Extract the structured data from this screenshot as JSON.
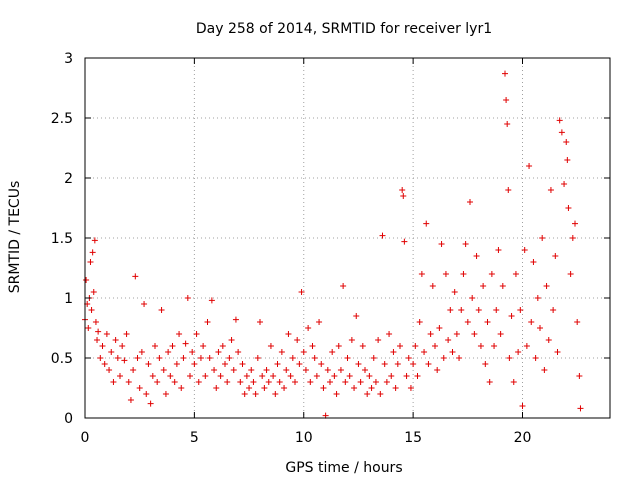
{
  "chart_data": {
    "type": "scatter",
    "title": "Day 258 of 2014, SRMTID for receiver lyr1",
    "xlabel": "GPS time / hours",
    "ylabel": "SRMTID / TECUs",
    "xlim": [
      0,
      24
    ],
    "ylim": [
      0,
      3
    ],
    "xticks": [
      0,
      5,
      10,
      15,
      20
    ],
    "yticks": [
      0,
      0.5,
      1,
      1.5,
      2,
      2.5,
      3
    ],
    "xtick_labels": [
      "0",
      "5",
      "10",
      "15",
      "20"
    ],
    "ytick_labels": [
      "0",
      "0.5",
      "1",
      "1.5",
      "2",
      "2.5",
      "3"
    ],
    "grid": true,
    "marker": "plus",
    "series": [
      {
        "name": "SRMTID",
        "color": "#e00000",
        "points": [
          [
            0.0,
            0.82
          ],
          [
            0.05,
            1.15
          ],
          [
            0.1,
            0.95
          ],
          [
            0.15,
            0.75
          ],
          [
            0.2,
            1.0
          ],
          [
            0.25,
            1.3
          ],
          [
            0.3,
            0.9
          ],
          [
            0.35,
            1.38
          ],
          [
            0.4,
            1.05
          ],
          [
            0.45,
            1.48
          ],
          [
            0.5,
            0.8
          ],
          [
            0.55,
            0.65
          ],
          [
            0.6,
            0.72
          ],
          [
            0.7,
            0.5
          ],
          [
            0.8,
            0.6
          ],
          [
            0.9,
            0.45
          ],
          [
            1.0,
            0.7
          ],
          [
            1.1,
            0.4
          ],
          [
            1.2,
            0.55
          ],
          [
            1.3,
            0.3
          ],
          [
            1.4,
            0.65
          ],
          [
            1.5,
            0.5
          ],
          [
            1.6,
            0.35
          ],
          [
            1.7,
            0.6
          ],
          [
            1.8,
            0.48
          ],
          [
            1.9,
            0.7
          ],
          [
            2.0,
            0.3
          ],
          [
            2.1,
            0.15
          ],
          [
            2.2,
            0.4
          ],
          [
            2.3,
            1.18
          ],
          [
            2.4,
            0.5
          ],
          [
            2.5,
            0.25
          ],
          [
            2.6,
            0.55
          ],
          [
            2.7,
            0.95
          ],
          [
            2.8,
            0.2
          ],
          [
            2.9,
            0.45
          ],
          [
            3.0,
            0.12
          ],
          [
            3.1,
            0.35
          ],
          [
            3.2,
            0.6
          ],
          [
            3.3,
            0.3
          ],
          [
            3.4,
            0.5
          ],
          [
            3.5,
            0.9
          ],
          [
            3.6,
            0.4
          ],
          [
            3.7,
            0.2
          ],
          [
            3.8,
            0.55
          ],
          [
            3.9,
            0.35
          ],
          [
            4.0,
            0.6
          ],
          [
            4.1,
            0.3
          ],
          [
            4.2,
            0.45
          ],
          [
            4.3,
            0.7
          ],
          [
            4.4,
            0.25
          ],
          [
            4.5,
            0.5
          ],
          [
            4.6,
            0.62
          ],
          [
            4.7,
            1.0
          ],
          [
            4.8,
            0.35
          ],
          [
            4.9,
            0.55
          ],
          [
            5.0,
            0.45
          ],
          [
            5.1,
            0.7
          ],
          [
            5.2,
            0.3
          ],
          [
            5.3,
            0.5
          ],
          [
            5.4,
            0.6
          ],
          [
            5.5,
            0.35
          ],
          [
            5.6,
            0.8
          ],
          [
            5.7,
            0.5
          ],
          [
            5.8,
            0.98
          ],
          [
            5.9,
            0.4
          ],
          [
            6.0,
            0.25
          ],
          [
            6.1,
            0.55
          ],
          [
            6.2,
            0.35
          ],
          [
            6.3,
            0.6
          ],
          [
            6.4,
            0.45
          ],
          [
            6.5,
            0.3
          ],
          [
            6.6,
            0.5
          ],
          [
            6.7,
            0.65
          ],
          [
            6.8,
            0.4
          ],
          [
            6.9,
            0.82
          ],
          [
            7.0,
            0.55
          ],
          [
            7.1,
            0.3
          ],
          [
            7.2,
            0.45
          ],
          [
            7.3,
            0.2
          ],
          [
            7.4,
            0.35
          ],
          [
            7.5,
            0.25
          ],
          [
            7.6,
            0.4
          ],
          [
            7.7,
            0.3
          ],
          [
            7.8,
            0.2
          ],
          [
            7.9,
            0.5
          ],
          [
            8.0,
            0.8
          ],
          [
            8.1,
            0.35
          ],
          [
            8.2,
            0.25
          ],
          [
            8.3,
            0.4
          ],
          [
            8.4,
            0.3
          ],
          [
            8.5,
            0.6
          ],
          [
            8.6,
            0.35
          ],
          [
            8.7,
            0.2
          ],
          [
            8.8,
            0.45
          ],
          [
            8.9,
            0.3
          ],
          [
            9.0,
            0.55
          ],
          [
            9.1,
            0.25
          ],
          [
            9.2,
            0.4
          ],
          [
            9.3,
            0.7
          ],
          [
            9.4,
            0.35
          ],
          [
            9.5,
            0.5
          ],
          [
            9.6,
            0.3
          ],
          [
            9.7,
            0.65
          ],
          [
            9.8,
            0.45
          ],
          [
            9.9,
            1.05
          ],
          [
            10.0,
            0.55
          ],
          [
            10.1,
            0.4
          ],
          [
            10.2,
            0.75
          ],
          [
            10.3,
            0.3
          ],
          [
            10.4,
            0.6
          ],
          [
            10.5,
            0.5
          ],
          [
            10.6,
            0.35
          ],
          [
            10.7,
            0.8
          ],
          [
            10.8,
            0.45
          ],
          [
            10.9,
            0.25
          ],
          [
            11.0,
            0.02
          ],
          [
            11.1,
            0.4
          ],
          [
            11.2,
            0.3
          ],
          [
            11.3,
            0.55
          ],
          [
            11.4,
            0.35
          ],
          [
            11.5,
            0.2
          ],
          [
            11.6,
            0.6
          ],
          [
            11.7,
            0.4
          ],
          [
            11.8,
            1.1
          ],
          [
            11.9,
            0.3
          ],
          [
            12.0,
            0.5
          ],
          [
            12.1,
            0.35
          ],
          [
            12.2,
            0.65
          ],
          [
            12.3,
            0.25
          ],
          [
            12.4,
            0.85
          ],
          [
            12.5,
            0.45
          ],
          [
            12.6,
            0.3
          ],
          [
            12.7,
            0.6
          ],
          [
            12.8,
            0.4
          ],
          [
            12.9,
            0.2
          ],
          [
            13.0,
            0.35
          ],
          [
            13.1,
            0.25
          ],
          [
            13.2,
            0.5
          ],
          [
            13.3,
            0.3
          ],
          [
            13.4,
            0.65
          ],
          [
            13.5,
            0.2
          ],
          [
            13.6,
            1.52
          ],
          [
            13.7,
            0.45
          ],
          [
            13.8,
            0.3
          ],
          [
            13.9,
            0.7
          ],
          [
            14.0,
            0.35
          ],
          [
            14.1,
            0.55
          ],
          [
            14.2,
            0.25
          ],
          [
            14.3,
            0.45
          ],
          [
            14.4,
            0.6
          ],
          [
            14.5,
            1.9
          ],
          [
            14.55,
            1.85
          ],
          [
            14.6,
            1.47
          ],
          [
            14.7,
            0.35
          ],
          [
            14.8,
            0.5
          ],
          [
            14.9,
            0.25
          ],
          [
            15.0,
            0.45
          ],
          [
            15.1,
            0.6
          ],
          [
            15.2,
            0.35
          ],
          [
            15.3,
            0.8
          ],
          [
            15.4,
            1.2
          ],
          [
            15.5,
            0.55
          ],
          [
            15.6,
            1.62
          ],
          [
            15.7,
            0.45
          ],
          [
            15.8,
            0.7
          ],
          [
            15.9,
            1.1
          ],
          [
            16.0,
            0.6
          ],
          [
            16.1,
            0.4
          ],
          [
            16.2,
            0.75
          ],
          [
            16.3,
            1.45
          ],
          [
            16.4,
            0.5
          ],
          [
            16.5,
            1.2
          ],
          [
            16.6,
            0.65
          ],
          [
            16.7,
            0.9
          ],
          [
            16.8,
            0.55
          ],
          [
            16.9,
            1.05
          ],
          [
            17.0,
            0.7
          ],
          [
            17.1,
            0.5
          ],
          [
            17.2,
            0.9
          ],
          [
            17.3,
            1.2
          ],
          [
            17.4,
            1.45
          ],
          [
            17.5,
            0.8
          ],
          [
            17.6,
            1.8
          ],
          [
            17.7,
            1.0
          ],
          [
            17.8,
            0.7
          ],
          [
            17.9,
            1.35
          ],
          [
            18.0,
            0.9
          ],
          [
            18.1,
            0.6
          ],
          [
            18.2,
            1.1
          ],
          [
            18.3,
            0.45
          ],
          [
            18.4,
            0.8
          ],
          [
            18.5,
            0.3
          ],
          [
            18.6,
            1.2
          ],
          [
            18.7,
            0.6
          ],
          [
            18.8,
            0.9
          ],
          [
            18.9,
            1.4
          ],
          [
            19.0,
            0.7
          ],
          [
            19.1,
            1.1
          ],
          [
            19.2,
            2.87
          ],
          [
            19.25,
            2.65
          ],
          [
            19.3,
            2.45
          ],
          [
            19.35,
            1.9
          ],
          [
            19.4,
            0.5
          ],
          [
            19.5,
            0.85
          ],
          [
            19.6,
            0.3
          ],
          [
            19.7,
            1.2
          ],
          [
            19.8,
            0.55
          ],
          [
            19.9,
            0.9
          ],
          [
            20.0,
            0.1
          ],
          [
            20.1,
            1.4
          ],
          [
            20.2,
            0.6
          ],
          [
            20.3,
            2.1
          ],
          [
            20.4,
            0.8
          ],
          [
            20.5,
            1.3
          ],
          [
            20.6,
            0.5
          ],
          [
            20.7,
            1.0
          ],
          [
            20.8,
            0.75
          ],
          [
            20.9,
            1.5
          ],
          [
            21.0,
            0.4
          ],
          [
            21.1,
            1.1
          ],
          [
            21.2,
            0.65
          ],
          [
            21.3,
            1.9
          ],
          [
            21.4,
            0.9
          ],
          [
            21.5,
            1.35
          ],
          [
            21.6,
            0.55
          ],
          [
            21.7,
            2.48
          ],
          [
            21.8,
            2.38
          ],
          [
            21.9,
            1.95
          ],
          [
            22.0,
            2.3
          ],
          [
            22.05,
            2.15
          ],
          [
            22.1,
            1.75
          ],
          [
            22.2,
            1.2
          ],
          [
            22.3,
            1.5
          ],
          [
            22.4,
            1.62
          ],
          [
            22.5,
            0.8
          ],
          [
            22.6,
            0.35
          ],
          [
            22.65,
            0.08
          ]
        ]
      }
    ]
  }
}
